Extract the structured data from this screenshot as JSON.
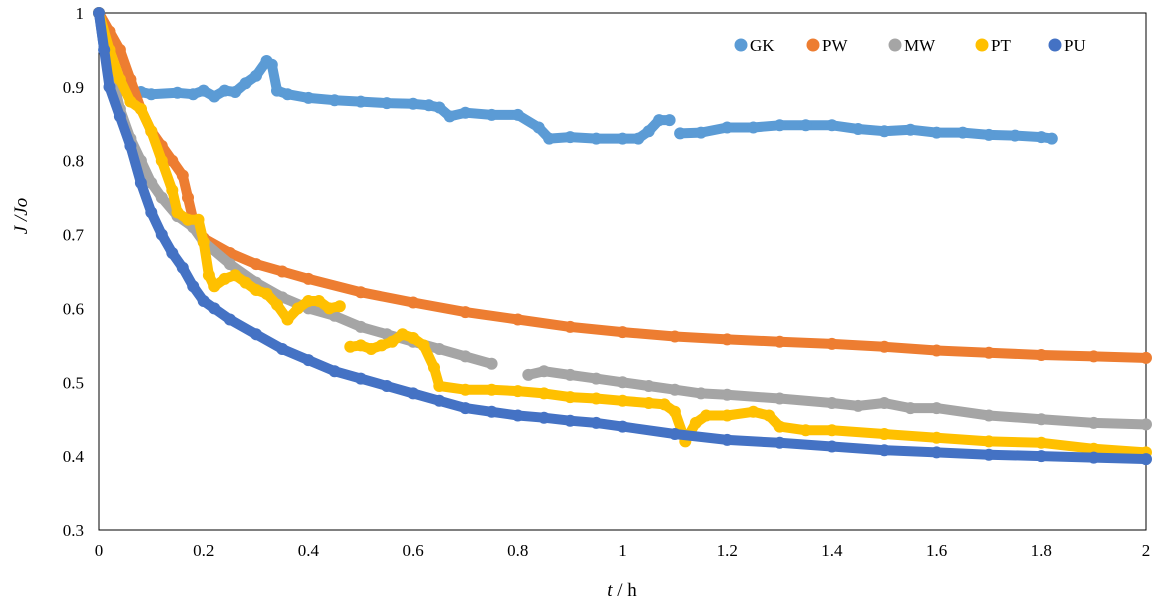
{
  "chart_data": {
    "type": "scatter",
    "xlabel_var": "t",
    "xlabel_unit": " / h",
    "ylabel_var": "J /Jo",
    "xlim": [
      0,
      2
    ],
    "ylim": [
      0.3,
      1
    ],
    "xticks": [
      "0",
      "0.2",
      "0.4",
      "0.6",
      "0.8",
      "1",
      "1.2",
      "1.4",
      "1.6",
      "1.8",
      "2"
    ],
    "yticks": [
      "0.3",
      "0.4",
      "0.5",
      "0.6",
      "0.7",
      "0.8",
      "0.9",
      "1"
    ],
    "grid": false,
    "legend_position": "top-right",
    "series": [
      {
        "name": "GK",
        "color": "#5B9BD5",
        "segments": [
          [
            [
              0,
              1.0
            ],
            [
              0.01,
              0.95
            ],
            [
              0.03,
              0.9
            ],
            [
              0.05,
              0.895
            ],
            [
              0.08,
              0.893
            ],
            [
              0.1,
              0.89
            ],
            [
              0.15,
              0.892
            ],
            [
              0.18,
              0.89
            ],
            [
              0.2,
              0.895
            ],
            [
              0.22,
              0.887
            ],
            [
              0.24,
              0.895
            ],
            [
              0.26,
              0.893
            ],
            [
              0.28,
              0.905
            ],
            [
              0.3,
              0.915
            ],
            [
              0.32,
              0.935
            ],
            [
              0.33,
              0.93
            ],
            [
              0.34,
              0.895
            ],
            [
              0.36,
              0.89
            ],
            [
              0.4,
              0.885
            ],
            [
              0.45,
              0.882
            ],
            [
              0.5,
              0.88
            ],
            [
              0.55,
              0.878
            ],
            [
              0.6,
              0.877
            ],
            [
              0.63,
              0.875
            ],
            [
              0.65,
              0.872
            ],
            [
              0.67,
              0.86
            ],
            [
              0.7,
              0.865
            ],
            [
              0.75,
              0.862
            ],
            [
              0.8,
              0.862
            ],
            [
              0.84,
              0.845
            ],
            [
              0.86,
              0.83
            ],
            [
              0.9,
              0.832
            ],
            [
              0.95,
              0.83
            ],
            [
              1.0,
              0.83
            ],
            [
              1.03,
              0.83
            ],
            [
              1.05,
              0.84
            ],
            [
              1.07,
              0.855
            ],
            [
              1.09,
              0.855
            ]
          ],
          [
            [
              1.11,
              0.837
            ],
            [
              1.15,
              0.838
            ],
            [
              1.2,
              0.845
            ],
            [
              1.25,
              0.845
            ],
            [
              1.3,
              0.848
            ],
            [
              1.35,
              0.848
            ],
            [
              1.4,
              0.848
            ],
            [
              1.45,
              0.843
            ],
            [
              1.5,
              0.84
            ],
            [
              1.55,
              0.842
            ],
            [
              1.6,
              0.838
            ],
            [
              1.65,
              0.838
            ],
            [
              1.7,
              0.835
            ],
            [
              1.75,
              0.834
            ],
            [
              1.8,
              0.832
            ],
            [
              1.82,
              0.83
            ]
          ]
        ]
      },
      {
        "name": "PW",
        "color": "#ED7D31",
        "segments": [
          [
            [
              0,
              1.0
            ],
            [
              0.02,
              0.975
            ],
            [
              0.04,
              0.95
            ],
            [
              0.06,
              0.91
            ],
            [
              0.08,
              0.87
            ],
            [
              0.1,
              0.84
            ],
            [
              0.12,
              0.82
            ],
            [
              0.14,
              0.8
            ],
            [
              0.16,
              0.78
            ],
            [
              0.17,
              0.75
            ],
            [
              0.18,
              0.72
            ],
            [
              0.2,
              0.695
            ],
            [
              0.25,
              0.675
            ],
            [
              0.3,
              0.66
            ],
            [
              0.35,
              0.65
            ],
            [
              0.4,
              0.64
            ],
            [
              0.5,
              0.622
            ],
            [
              0.6,
              0.608
            ],
            [
              0.7,
              0.595
            ],
            [
              0.8,
              0.585
            ],
            [
              0.9,
              0.575
            ],
            [
              1.0,
              0.568
            ],
            [
              1.1,
              0.562
            ],
            [
              1.2,
              0.558
            ],
            [
              1.3,
              0.555
            ],
            [
              1.4,
              0.552
            ],
            [
              1.5,
              0.548
            ],
            [
              1.6,
              0.543
            ],
            [
              1.7,
              0.54
            ],
            [
              1.8,
              0.537
            ],
            [
              1.9,
              0.535
            ],
            [
              2.0,
              0.533
            ]
          ]
        ]
      },
      {
        "name": "MW",
        "color": "#A5A5A5",
        "segments": [
          [
            [
              0,
              1.0
            ],
            [
              0.02,
              0.93
            ],
            [
              0.04,
              0.87
            ],
            [
              0.06,
              0.83
            ],
            [
              0.08,
              0.8
            ],
            [
              0.1,
              0.77
            ],
            [
              0.12,
              0.75
            ],
            [
              0.15,
              0.725
            ],
            [
              0.18,
              0.71
            ],
            [
              0.2,
              0.69
            ],
            [
              0.25,
              0.66
            ],
            [
              0.3,
              0.635
            ],
            [
              0.35,
              0.615
            ],
            [
              0.4,
              0.6
            ],
            [
              0.45,
              0.59
            ],
            [
              0.5,
              0.575
            ],
            [
              0.55,
              0.565
            ],
            [
              0.6,
              0.555
            ],
            [
              0.65,
              0.545
            ],
            [
              0.7,
              0.535
            ],
            [
              0.75,
              0.525
            ]
          ],
          [
            [
              0.82,
              0.51
            ],
            [
              0.85,
              0.515
            ],
            [
              0.9,
              0.51
            ],
            [
              0.95,
              0.505
            ],
            [
              1.0,
              0.5
            ],
            [
              1.05,
              0.495
            ],
            [
              1.1,
              0.49
            ],
            [
              1.15,
              0.485
            ],
            [
              1.2,
              0.483
            ],
            [
              1.3,
              0.478
            ],
            [
              1.4,
              0.472
            ],
            [
              1.45,
              0.468
            ],
            [
              1.5,
              0.472
            ],
            [
              1.55,
              0.465
            ],
            [
              1.6,
              0.465
            ],
            [
              1.7,
              0.455
            ],
            [
              1.8,
              0.45
            ],
            [
              1.9,
              0.445
            ],
            [
              2.0,
              0.443
            ]
          ]
        ]
      },
      {
        "name": "PT",
        "color": "#FFC000",
        "segments": [
          [
            [
              0,
              1.0
            ],
            [
              0.02,
              0.95
            ],
            [
              0.04,
              0.91
            ],
            [
              0.06,
              0.88
            ],
            [
              0.08,
              0.87
            ],
            [
              0.1,
              0.84
            ],
            [
              0.12,
              0.8
            ],
            [
              0.14,
              0.76
            ],
            [
              0.15,
              0.73
            ],
            [
              0.17,
              0.72
            ],
            [
              0.19,
              0.72
            ],
            [
              0.2,
              0.69
            ],
            [
              0.21,
              0.645
            ],
            [
              0.22,
              0.63
            ],
            [
              0.24,
              0.64
            ],
            [
              0.26,
              0.645
            ],
            [
              0.28,
              0.635
            ],
            [
              0.3,
              0.625
            ],
            [
              0.32,
              0.62
            ],
            [
              0.34,
              0.605
            ],
            [
              0.36,
              0.585
            ],
            [
              0.38,
              0.6
            ],
            [
              0.4,
              0.61
            ],
            [
              0.42,
              0.61
            ],
            [
              0.44,
              0.6
            ],
            [
              0.46,
              0.603
            ]
          ],
          [
            [
              0.48,
              0.548
            ],
            [
              0.5,
              0.55
            ],
            [
              0.52,
              0.545
            ],
            [
              0.54,
              0.55
            ],
            [
              0.56,
              0.555
            ],
            [
              0.58,
              0.565
            ],
            [
              0.6,
              0.56
            ],
            [
              0.62,
              0.55
            ],
            [
              0.64,
              0.52
            ],
            [
              0.65,
              0.495
            ],
            [
              0.7,
              0.49
            ],
            [
              0.75,
              0.49
            ],
            [
              0.8,
              0.488
            ],
            [
              0.85,
              0.485
            ],
            [
              0.9,
              0.48
            ],
            [
              0.95,
              0.478
            ],
            [
              1.0,
              0.475
            ],
            [
              1.05,
              0.472
            ],
            [
              1.08,
              0.47
            ],
            [
              1.1,
              0.46
            ],
            [
              1.12,
              0.42
            ],
            [
              1.14,
              0.445
            ],
            [
              1.16,
              0.455
            ],
            [
              1.2,
              0.455
            ],
            [
              1.25,
              0.46
            ],
            [
              1.28,
              0.455
            ],
            [
              1.3,
              0.44
            ],
            [
              1.35,
              0.435
            ],
            [
              1.4,
              0.435
            ],
            [
              1.5,
              0.43
            ],
            [
              1.6,
              0.425
            ],
            [
              1.7,
              0.42
            ],
            [
              1.8,
              0.418
            ],
            [
              1.9,
              0.41
            ],
            [
              2.0,
              0.405
            ]
          ]
        ]
      },
      {
        "name": "PU",
        "color": "#4472C4",
        "segments": [
          [
            [
              0,
              1.0
            ],
            [
              0.01,
              0.95
            ],
            [
              0.02,
              0.9
            ],
            [
              0.04,
              0.86
            ],
            [
              0.06,
              0.82
            ],
            [
              0.08,
              0.77
            ],
            [
              0.1,
              0.73
            ],
            [
              0.12,
              0.7
            ],
            [
              0.14,
              0.675
            ],
            [
              0.16,
              0.655
            ],
            [
              0.18,
              0.63
            ],
            [
              0.2,
              0.61
            ],
            [
              0.22,
              0.6
            ],
            [
              0.25,
              0.585
            ],
            [
              0.3,
              0.565
            ],
            [
              0.35,
              0.545
            ],
            [
              0.4,
              0.53
            ],
            [
              0.45,
              0.515
            ],
            [
              0.5,
              0.505
            ],
            [
              0.55,
              0.495
            ],
            [
              0.6,
              0.485
            ],
            [
              0.65,
              0.475
            ],
            [
              0.7,
              0.465
            ],
            [
              0.75,
              0.46
            ],
            [
              0.8,
              0.455
            ],
            [
              0.85,
              0.452
            ],
            [
              0.9,
              0.448
            ],
            [
              0.95,
              0.445
            ],
            [
              1.0,
              0.44
            ],
            [
              1.1,
              0.43
            ],
            [
              1.2,
              0.422
            ],
            [
              1.3,
              0.418
            ],
            [
              1.4,
              0.413
            ],
            [
              1.5,
              0.408
            ],
            [
              1.6,
              0.405
            ],
            [
              1.7,
              0.402
            ],
            [
              1.8,
              0.4
            ],
            [
              1.9,
              0.398
            ],
            [
              2.0,
              0.396
            ]
          ]
        ]
      }
    ]
  }
}
